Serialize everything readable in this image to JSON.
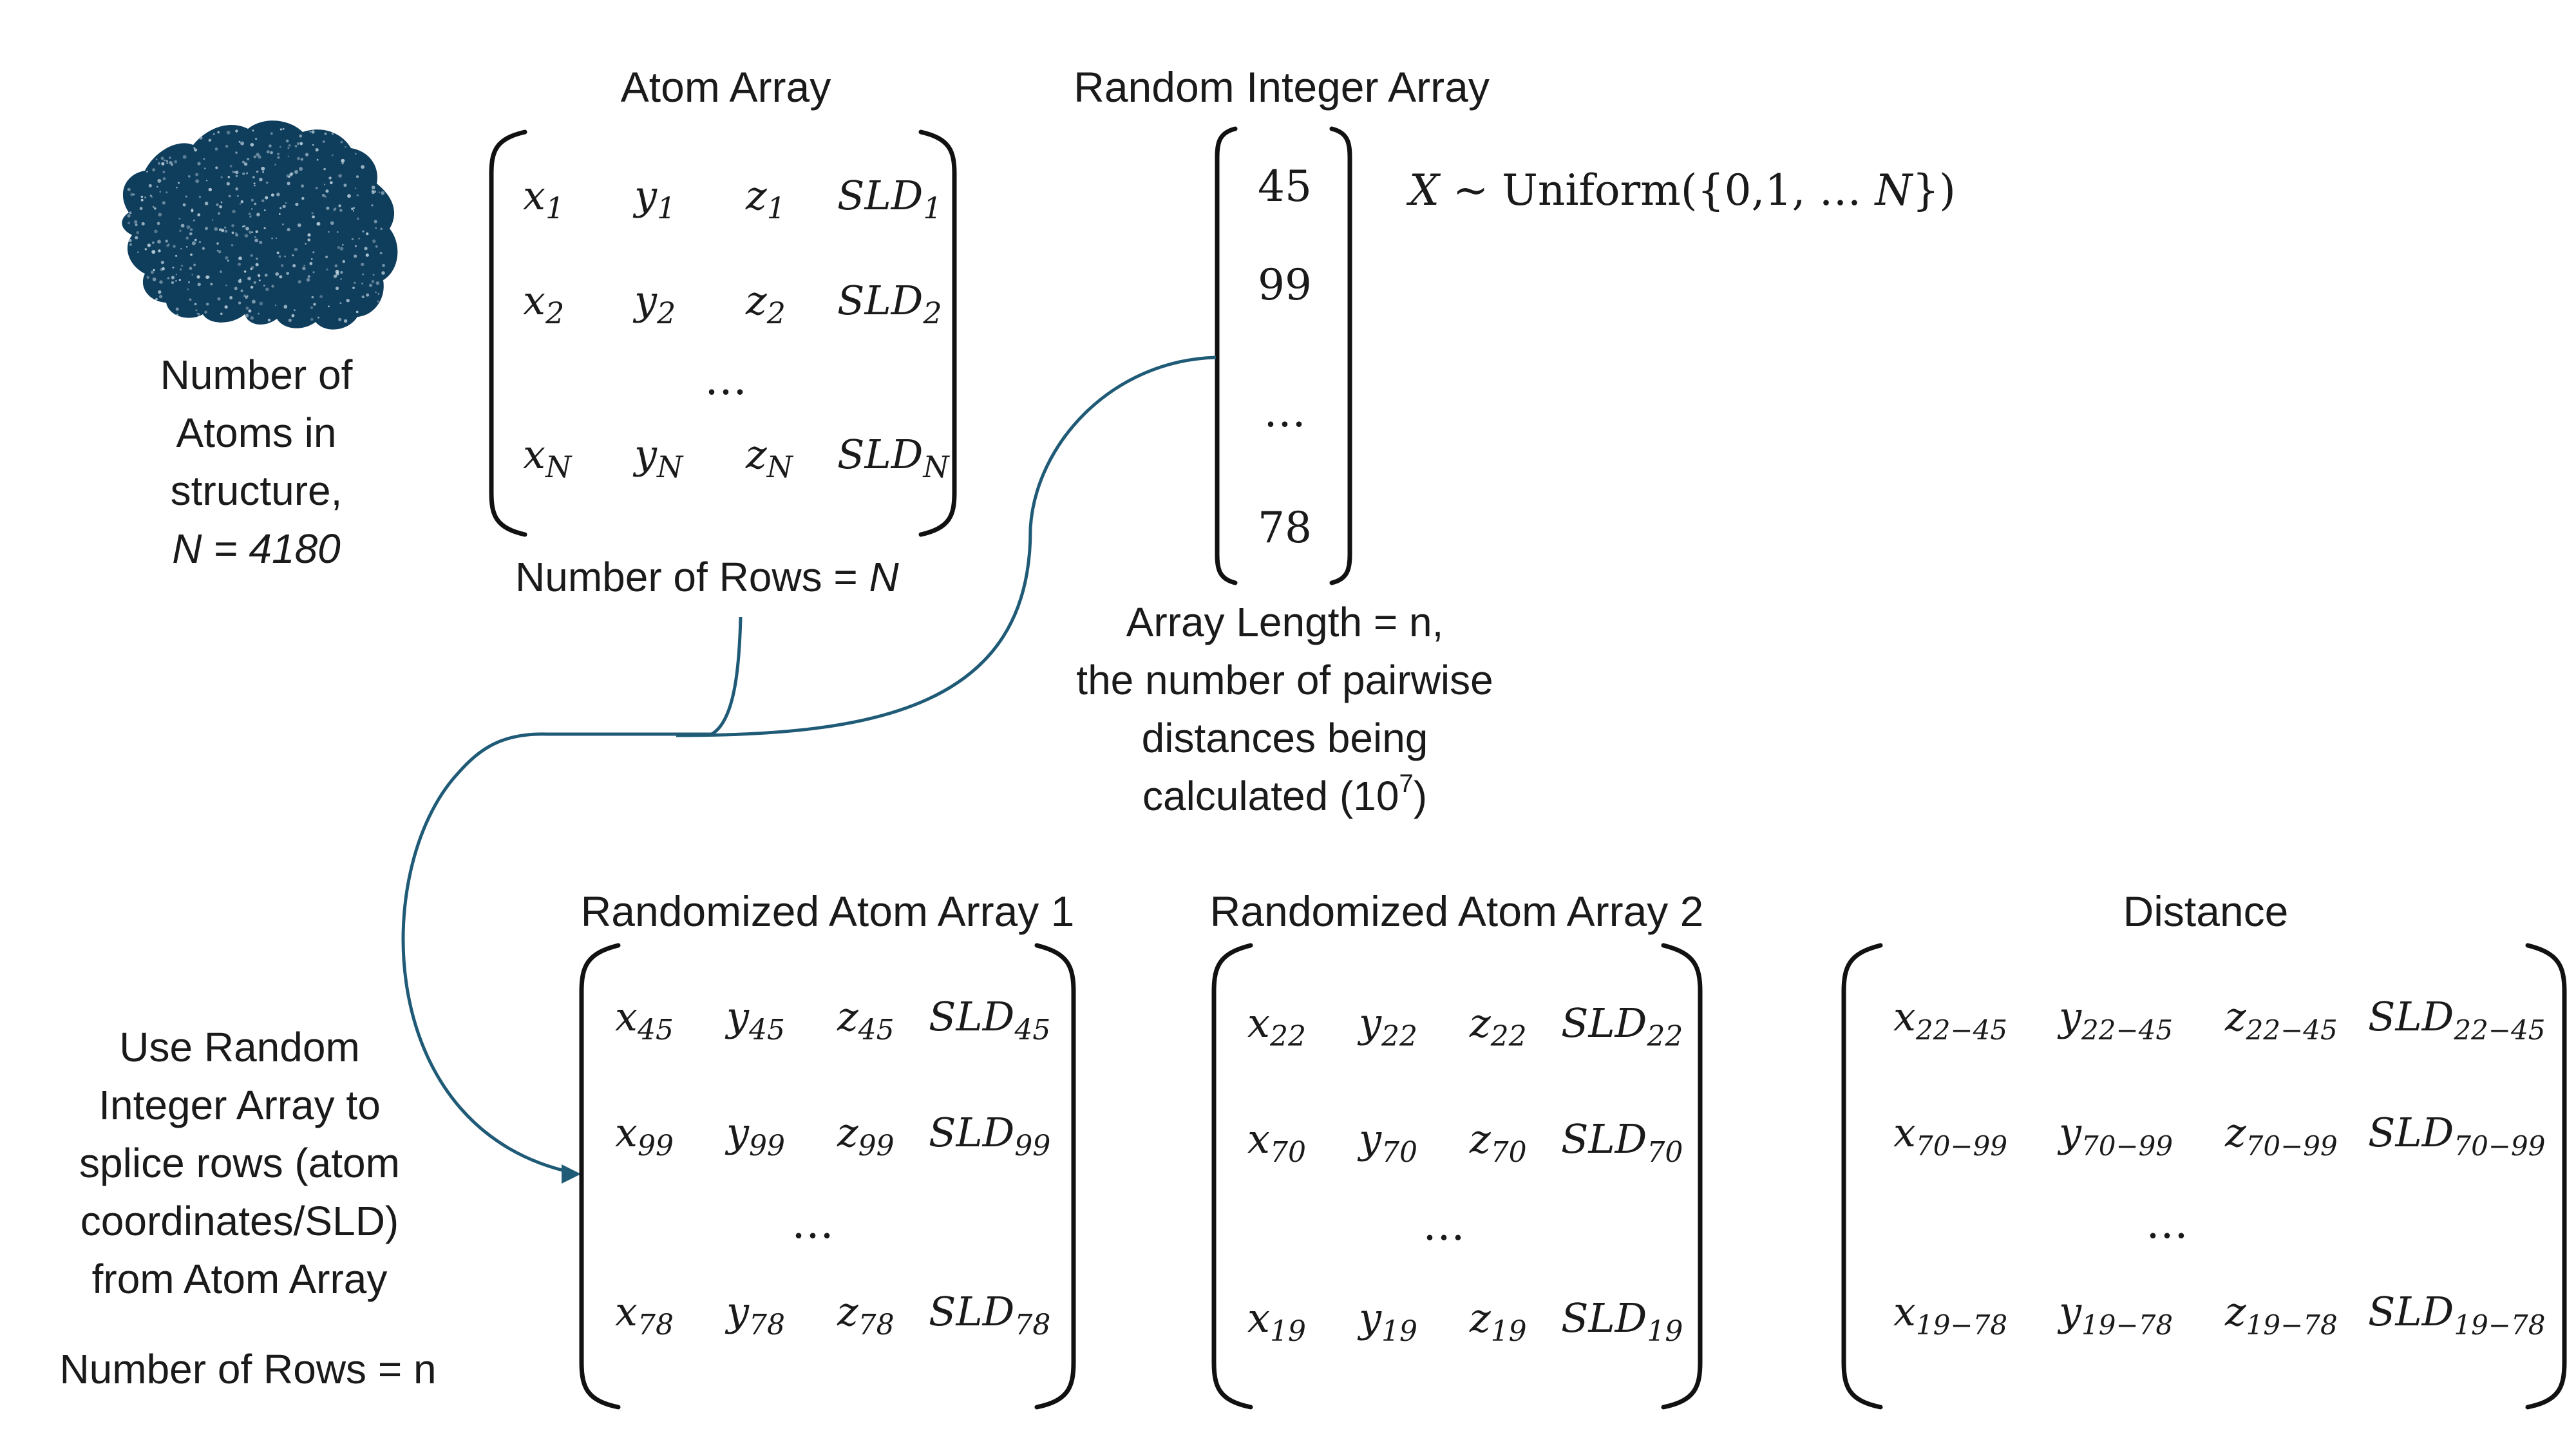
{
  "protein": {
    "caption_lines": [
      "Number of",
      "Atoms in",
      "structure,",
      "N = 4180"
    ],
    "color": "#0f3d5c"
  },
  "atom_array": {
    "title": "Atom Array",
    "rows": [
      [
        [
          "x",
          "1"
        ],
        [
          "y",
          "1"
        ],
        [
          "z",
          "1"
        ],
        [
          "SLD",
          "1"
        ]
      ],
      [
        [
          "x",
          "2"
        ],
        [
          "y",
          "2"
        ],
        [
          "z",
          "2"
        ],
        [
          "SLD",
          "2"
        ]
      ],
      [
        [
          "x",
          "N"
        ],
        [
          "y",
          "N"
        ],
        [
          "z",
          "N"
        ],
        [
          "SLD",
          "N"
        ]
      ]
    ],
    "ellipsis": "…",
    "rows_label_prefix": "Number of Rows = ",
    "rows_label_var": "N"
  },
  "random_array": {
    "title": "Random Integer Array",
    "values": [
      "45",
      "99",
      "…",
      "78"
    ],
    "distribution_var": "X ~ ",
    "distribution_rest": "Uniform({0,1, … ",
    "distribution_n": "N",
    "distribution_close": "})",
    "length_lines": [
      "Array Length = n,",
      "the number of pairwise",
      "distances being",
      "calculated (10"
    ],
    "length_exponent": "7",
    "length_close": ")"
  },
  "splice_note": {
    "lines": [
      "Use Random",
      "Integer Array to",
      "splice rows (atom",
      "coordinates/SLD)",
      "from Atom Array"
    ],
    "rows_label": "Number of Rows = n"
  },
  "randomized_1": {
    "title": "Randomized Atom Array 1",
    "rows": [
      [
        [
          "x",
          "45"
        ],
        [
          "y",
          "45"
        ],
        [
          "z",
          "45"
        ],
        [
          "SLD",
          "45"
        ]
      ],
      [
        [
          "x",
          "99"
        ],
        [
          "y",
          "99"
        ],
        [
          "z",
          "99"
        ],
        [
          "SLD",
          "99"
        ]
      ],
      [
        [
          "x",
          "78"
        ],
        [
          "y",
          "78"
        ],
        [
          "z",
          "78"
        ],
        [
          "SLD",
          "78"
        ]
      ]
    ],
    "ellipsis": "…"
  },
  "randomized_2": {
    "title": "Randomized Atom Array 2",
    "rows": [
      [
        [
          "x",
          "22"
        ],
        [
          "y",
          "22"
        ],
        [
          "z",
          "22"
        ],
        [
          "SLD",
          "22"
        ]
      ],
      [
        [
          "x",
          "70"
        ],
        [
          "y",
          "70"
        ],
        [
          "z",
          "70"
        ],
        [
          "SLD",
          "70"
        ]
      ],
      [
        [
          "x",
          "19"
        ],
        [
          "y",
          "19"
        ],
        [
          "z",
          "19"
        ],
        [
          "SLD",
          "19"
        ]
      ]
    ],
    "ellipsis": "…"
  },
  "distance": {
    "title": "Distance",
    "rows": [
      [
        [
          "x",
          "22−45"
        ],
        [
          "y",
          "22−45"
        ],
        [
          "z",
          "22−45"
        ],
        [
          "SLD",
          "22−45"
        ]
      ],
      [
        [
          "x",
          "70−99"
        ],
        [
          "y",
          "70−99"
        ],
        [
          "z",
          "70−99"
        ],
        [
          "SLD",
          "70−99"
        ]
      ],
      [
        [
          "x",
          "19−78"
        ],
        [
          "y",
          "19−78"
        ],
        [
          "z",
          "19−78"
        ],
        [
          "SLD",
          "19−78"
        ]
      ]
    ],
    "ellipsis": "…"
  },
  "colors": {
    "connector": "#1f5a76",
    "text": "#1a1a1a"
  }
}
